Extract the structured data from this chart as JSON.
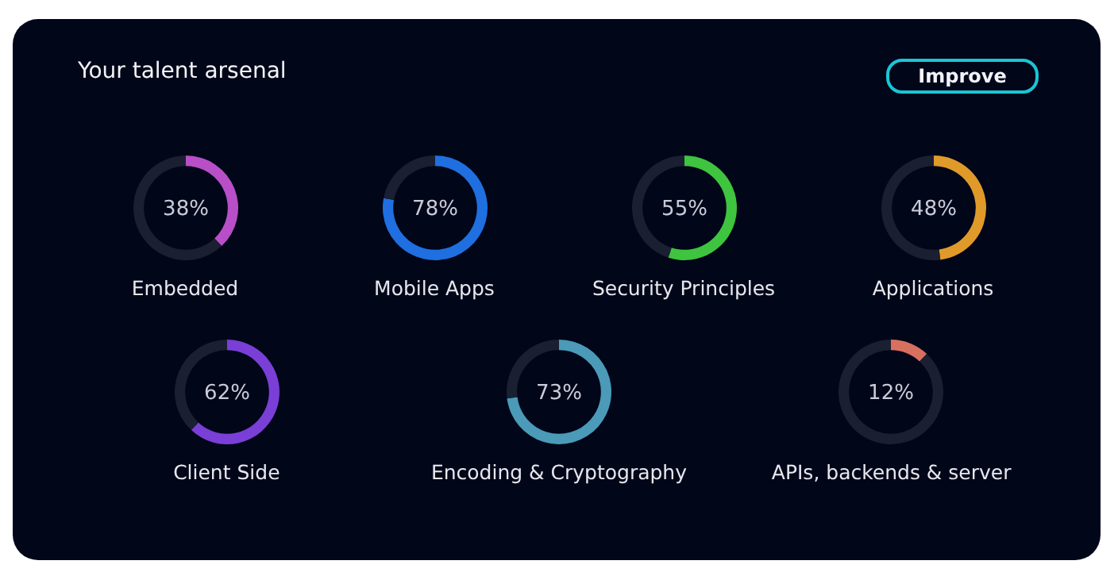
{
  "chart_data": [
    {
      "type": "other",
      "title": "Your talent arsenal",
      "annotations": [
        "Improve"
      ]
    },
    {
      "type": "donut",
      "title": "Embedded",
      "categories": [
        null,
        null
      ],
      "values": [
        38,
        62
      ],
      "colors": [
        "#b84fc8",
        "#1b1f32"
      ],
      "annotations": [
        "38%"
      ]
    },
    {
      "type": "donut",
      "title": "Mobile Apps",
      "categories": [
        null,
        null
      ],
      "values": [
        78,
        22
      ],
      "colors": [
        "#1f6fe0",
        "#1b1f32"
      ],
      "annotations": [
        "78%"
      ]
    },
    {
      "type": "donut",
      "title": "Security Principles",
      "categories": [
        null,
        null
      ],
      "values": [
        55,
        45
      ],
      "colors": [
        "#3ec43e",
        "#1b1f32"
      ],
      "annotations": [
        "55%"
      ]
    },
    {
      "type": "donut",
      "title": "Applications",
      "categories": [
        null,
        null
      ],
      "values": [
        48,
        52
      ],
      "colors": [
        "#e09a2a",
        "#1b1f32"
      ],
      "annotations": [
        "48%"
      ]
    },
    {
      "type": "donut",
      "title": "Client Side",
      "categories": [
        null,
        null
      ],
      "values": [
        62,
        38
      ],
      "colors": [
        "#7a3fd6",
        "#1b1f32"
      ],
      "annotations": [
        "62%"
      ]
    },
    {
      "type": "donut",
      "title": "Encoding & Cryptography",
      "categories": [
        null,
        null
      ],
      "values": [
        73,
        27
      ],
      "colors": [
        "#4a9ab8",
        "#1b1f32"
      ],
      "annotations": [
        "73%"
      ]
    },
    {
      "type": "donut",
      "title": "APIs, backends & server",
      "categories": [
        null,
        null
      ],
      "values": [
        12,
        88
      ],
      "colors": [
        "#d87060",
        "#1b1f32"
      ],
      "annotations": [
        "12%"
      ]
    }
  ]
}
